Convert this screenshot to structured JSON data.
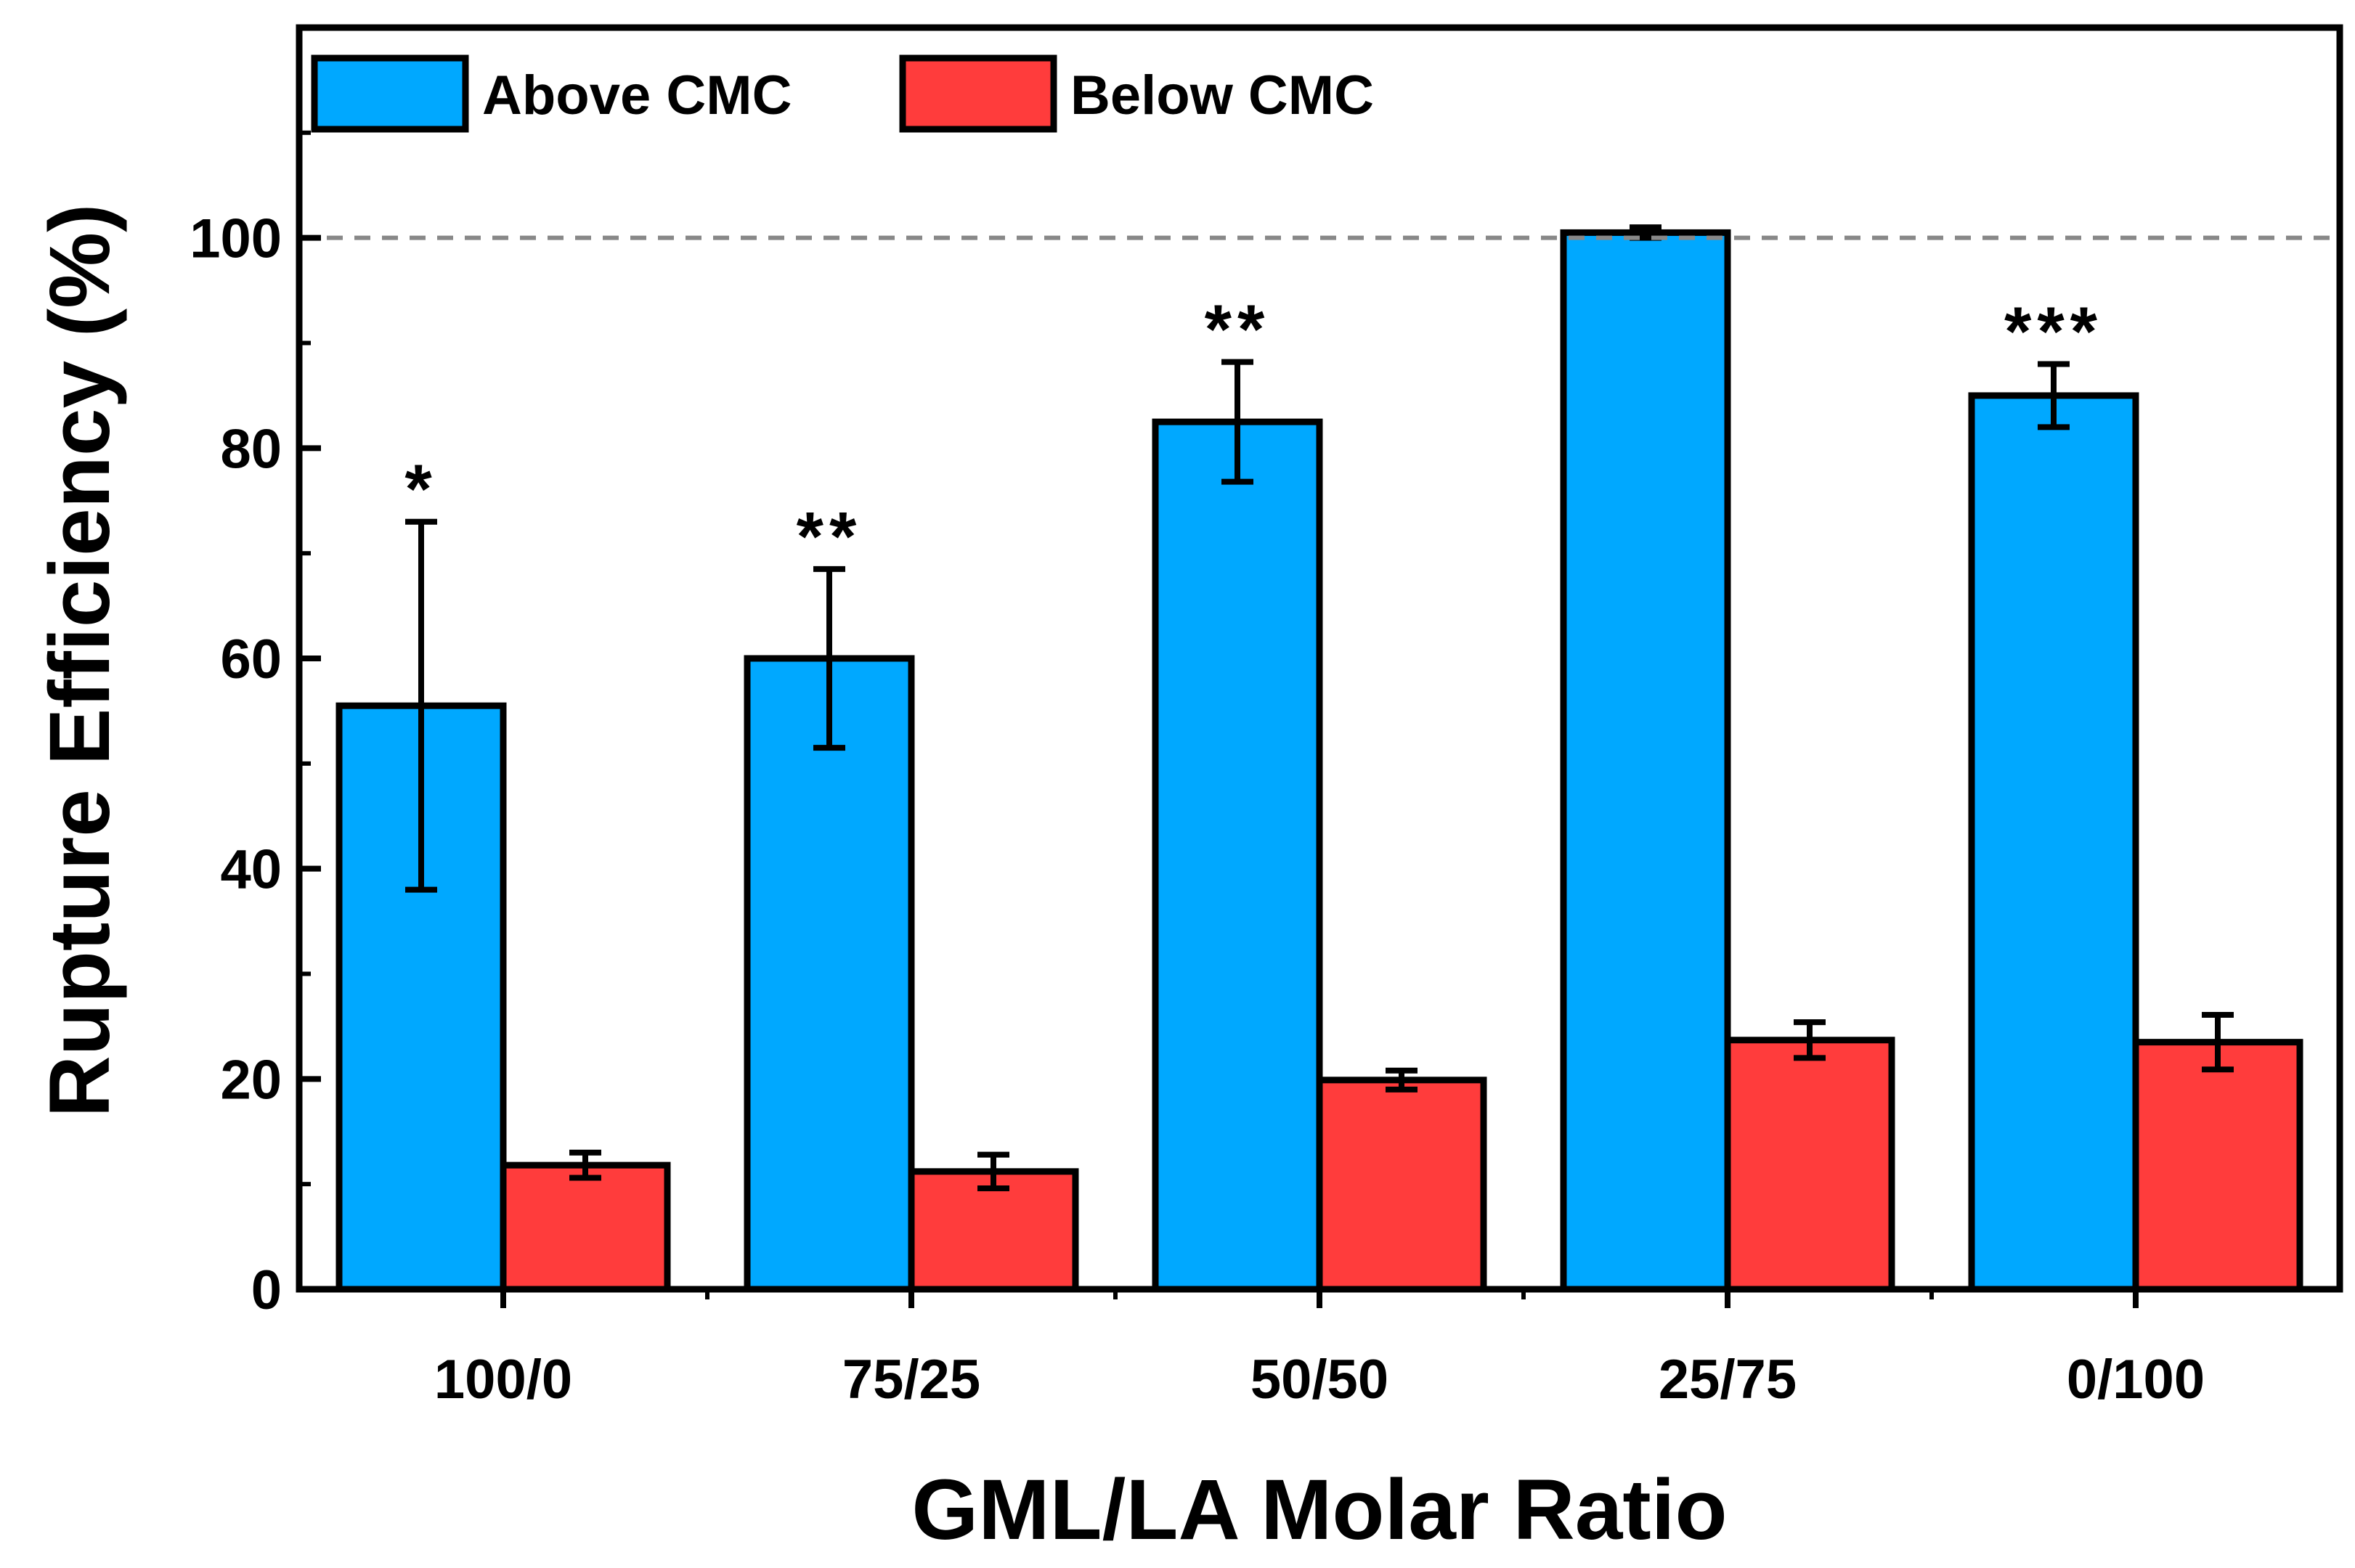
{
  "chart_data": {
    "type": "bar",
    "title": "",
    "xlabel": "GML/LA Molar Ratio",
    "ylabel": "Rupture Efficiency (%)",
    "categories": [
      "100/0",
      "75/25",
      "50/50",
      "25/75",
      "0/100"
    ],
    "ylim": [
      0,
      120
    ],
    "yticks": [
      0,
      20,
      40,
      60,
      80,
      100
    ],
    "reference_line": {
      "y": 100,
      "style": "dashed",
      "color": "#888888"
    },
    "legend": {
      "position": "top-left",
      "orientation": "horizontal"
    },
    "grid": false,
    "series": [
      {
        "name": "Above CMC",
        "color": "#00a8ff",
        "values": [
          55.5,
          60,
          82.5,
          100.5,
          85
        ],
        "errors": [
          17.5,
          8.5,
          5.7,
          0.5,
          3.0
        ]
      },
      {
        "name": "Below CMC",
        "color": "#ff3c3c",
        "values": [
          11.8,
          11.2,
          19.9,
          23.7,
          23.5
        ],
        "errors": [
          1.2,
          1.6,
          0.9,
          1.7,
          2.6
        ]
      }
    ],
    "significance": [
      "*",
      "**",
      "**",
      "",
      "***"
    ]
  }
}
